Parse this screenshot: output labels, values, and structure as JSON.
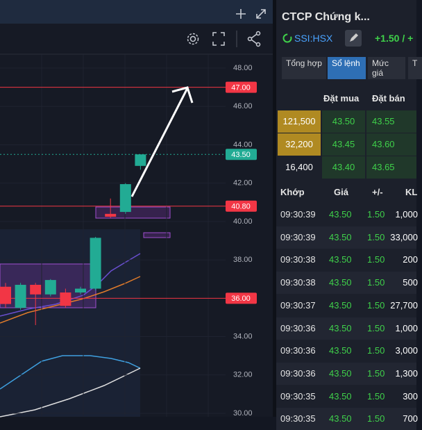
{
  "header": {
    "title": "CTCP Chứng k...",
    "symbol": "SSI:HSX",
    "change": "+1.50 / +"
  },
  "tabs": [
    "Tổng hợp",
    "Sổ lệnh",
    "Mức giá",
    "T"
  ],
  "order_book": {
    "headers": [
      "Đặt mua",
      "Đặt bán"
    ],
    "rows": [
      [
        "121,500",
        "43.50",
        "43.55"
      ],
      [
        "32,200",
        "43.45",
        "43.60"
      ],
      [
        "16,400",
        "43.40",
        "43.65"
      ]
    ]
  },
  "trades": {
    "headers": [
      "Khớp",
      "Giá",
      "+/-",
      "KL"
    ],
    "rows": [
      [
        "09:30:39",
        "43.50",
        "1.50",
        "1,000"
      ],
      [
        "09:30:39",
        "43.50",
        "1.50",
        "33,000"
      ],
      [
        "09:30:38",
        "43.50",
        "1.50",
        "200"
      ],
      [
        "09:30:38",
        "43.50",
        "1.50",
        "500"
      ],
      [
        "09:30:37",
        "43.50",
        "1.50",
        "27,700"
      ],
      [
        "09:30:36",
        "43.50",
        "1.50",
        "1,000"
      ],
      [
        "09:30:36",
        "43.50",
        "1.50",
        "3,000"
      ],
      [
        "09:30:36",
        "43.50",
        "1.50",
        "1,300"
      ],
      [
        "09:30:35",
        "43.50",
        "1.50",
        "300"
      ],
      [
        "09:30:35",
        "43.50",
        "1.50",
        "700"
      ]
    ]
  },
  "chart": {
    "type": "candlestick",
    "ylim": [
      30,
      48
    ],
    "yticks": [
      {
        "value": 30,
        "label": "30.00"
      },
      {
        "value": 32,
        "label": "32.00"
      },
      {
        "value": 34,
        "label": "34.00"
      },
      {
        "value": 38,
        "label": "38.00"
      },
      {
        "value": 40,
        "label": "40.00"
      },
      {
        "value": 42,
        "label": "42.00"
      },
      {
        "value": 44,
        "label": "44.00"
      },
      {
        "value": 46,
        "label": "46.00"
      },
      {
        "value": 48,
        "label": "48.00"
      }
    ],
    "levels": [
      {
        "value": 47,
        "label": "47.00",
        "color": "#f23645"
      },
      {
        "value": 43.5,
        "label": "43.50",
        "color": "#22ab94"
      },
      {
        "value": 40.8,
        "label": "40.80",
        "color": "#f23645"
      },
      {
        "value": 36,
        "label": "36.00",
        "color": "#f23645"
      }
    ],
    "up_color": "#22ab94",
    "down_color": "#f23645",
    "candles": [
      {
        "open": 36.6,
        "high": 36.8,
        "low": 35.5,
        "close": 35.7
      },
      {
        "open": 35.5,
        "high": 36.8,
        "low": 35.4,
        "close": 36.7
      },
      {
        "open": 36.7,
        "high": 36.8,
        "low": 34.6,
        "close": 36.2
      },
      {
        "open": 36.2,
        "high": 37.0,
        "low": 36.1,
        "close": 36.95
      },
      {
        "open": 36.3,
        "high": 36.5,
        "low": 35.5,
        "close": 35.6
      },
      {
        "open": 36.3,
        "high": 36.6,
        "low": 36.2,
        "close": 36.5
      },
      {
        "open": 36.5,
        "high": 39.2,
        "low": 36.4,
        "close": 39.15
      },
      {
        "open": 40.4,
        "high": 41.2,
        "low": 40.2,
        "close": 40.25
      },
      {
        "open": 40.5,
        "high": 42.0,
        "low": 40.4,
        "close": 41.95
      },
      {
        "open": 42.9,
        "high": 43.5,
        "low": 42.7,
        "close": 43.5
      }
    ]
  }
}
